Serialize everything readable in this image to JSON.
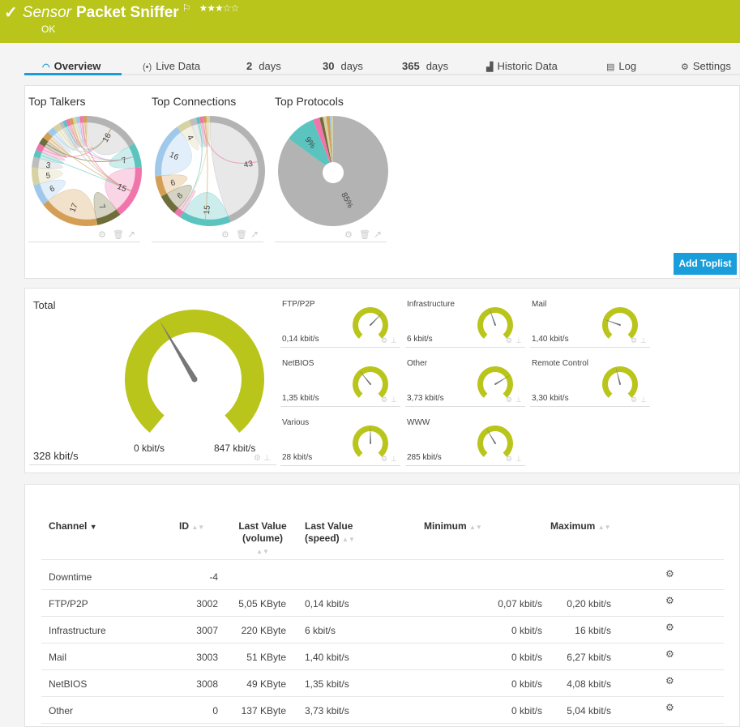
{
  "header": {
    "prefix": "Sensor",
    "title": "Packet Sniffer",
    "status": "OK",
    "rating": 3,
    "rating_max": 5,
    "stars": "★★★☆☆",
    "flag": "⚐",
    "check": "✓",
    "color": "#b9c51b"
  },
  "tabs": [
    {
      "icon": "◠",
      "label": "Overview",
      "active": true
    },
    {
      "icon": "(•)",
      "label": "Live Data"
    },
    {
      "num": "2",
      "label": "days"
    },
    {
      "num": "30",
      "label": "days"
    },
    {
      "num": "365",
      "label": "days"
    },
    {
      "icon": "▟",
      "label": "Historic Data"
    },
    {
      "icon": "▤",
      "label": "Log"
    },
    {
      "icon": "⚙",
      "label": "Settings"
    }
  ],
  "toplists": {
    "items": [
      {
        "title": "Top Talkers",
        "type": "chord",
        "segments": [
          {
            "v": 16,
            "c": "#b3b3b3",
            "label": "16"
          },
          {
            "v": 7,
            "c": "#5bc4bf",
            "label": "7"
          },
          {
            "v": 15,
            "c": "#f075ab",
            "label": "15"
          },
          {
            "v": 7,
            "c": "#6f6d3a",
            "label": "7"
          },
          {
            "v": 17,
            "c": "#d49f55",
            "label": "17"
          },
          {
            "v": 6,
            "c": "#9fc8ea",
            "label": "6"
          },
          {
            "v": 5,
            "c": "#d7d2a3",
            "label": "5"
          },
          {
            "v": 3,
            "c": "#bdbdbd",
            "label": "3"
          },
          {
            "v": 2,
            "c": "#5bc4bf"
          },
          {
            "v": 2,
            "c": "#f075ab"
          },
          {
            "v": 2,
            "c": "#6f6d3a"
          },
          {
            "v": 2,
            "c": "#d49f55"
          },
          {
            "v": 2,
            "c": "#9fc8ea"
          },
          {
            "v": 2,
            "c": "#d7d2a3"
          },
          {
            "v": 1,
            "c": "#bdbdbd"
          },
          {
            "v": 1,
            "c": "#5bc4bf"
          },
          {
            "v": 1,
            "c": "#f075ab"
          },
          {
            "v": 1,
            "c": "#d49f55"
          },
          {
            "v": 1,
            "c": "#d7d2a3"
          },
          {
            "v": 1,
            "c": "#9fc8ea"
          },
          {
            "v": 1,
            "c": "#f075ab"
          },
          {
            "v": 1,
            "c": "#d49f55"
          }
        ]
      },
      {
        "title": "Top Connections",
        "type": "chord",
        "segments": [
          {
            "v": 43,
            "c": "#b3b3b3",
            "label": "43"
          },
          {
            "v": 15,
            "c": "#5bc4bf",
            "label": "15"
          },
          {
            "v": 2,
            "c": "#f075ab"
          },
          {
            "v": 6,
            "c": "#6f6d3a",
            "label": "6"
          },
          {
            "v": 6,
            "c": "#d49f55",
            "label": "6"
          },
          {
            "v": 16,
            "c": "#9fc8ea",
            "label": "16"
          },
          {
            "v": 4,
            "c": "#d7d2a3",
            "label": "4"
          },
          {
            "v": 2,
            "c": "#bdbdbd"
          },
          {
            "v": 1,
            "c": "#5bc4bf"
          },
          {
            "v": 1,
            "c": "#f075ab"
          },
          {
            "v": 1,
            "c": "#d49f55"
          },
          {
            "v": 1,
            "c": "#d7d2a3"
          }
        ]
      },
      {
        "title": "Top Protocols",
        "type": "pie",
        "segments": [
          {
            "v": 85,
            "c": "#b3b3b3",
            "label": "85%"
          },
          {
            "v": 9,
            "c": "#5bc4bf",
            "label": "9%"
          },
          {
            "v": 2,
            "c": "#f075ab"
          },
          {
            "v": 1,
            "c": "#6f6d3a"
          },
          {
            "v": 1,
            "c": "#d7d2a3"
          },
          {
            "v": 1,
            "c": "#d49f55"
          },
          {
            "v": 0.5,
            "c": "#9fc8ea"
          },
          {
            "v": 0.5,
            "c": "#d7d2a3"
          }
        ]
      }
    ],
    "add_button": "Add Toplist"
  },
  "gauges": {
    "color": "#b9c51b",
    "total": {
      "label": "Total",
      "value": "328 kbit/s",
      "min": "0 kbit/s",
      "max": "847 kbit/s",
      "fraction": 0.39
    },
    "small": [
      {
        "label": "FTP/P2P",
        "value": "0,14 kbit/s",
        "fraction": 0.66
      },
      {
        "label": "Infrastructure",
        "value": "6 kbit/s",
        "fraction": 0.43
      },
      {
        "label": "Mail",
        "value": "1,40 kbit/s",
        "fraction": 0.25
      },
      {
        "label": "NetBIOS",
        "value": "1,35 kbit/s",
        "fraction": 0.36
      },
      {
        "label": "Other",
        "value": "3,73 kbit/s",
        "fraction": 0.71
      },
      {
        "label": "Remote Control",
        "value": "3,30 kbit/s",
        "fraction": 0.45
      },
      {
        "label": "Various",
        "value": "28 kbit/s",
        "fraction": 0.5
      },
      {
        "label": "WWW",
        "value": "285 kbit/s",
        "fraction": 0.39
      }
    ]
  },
  "table": {
    "headers": {
      "channel": "Channel",
      "id": "ID",
      "vol1": "Last Value",
      "vol2": "(volume)",
      "spd1": "Last Value",
      "spd2": "(speed)",
      "min": "Minimum",
      "max": "Maximum"
    },
    "rows": [
      {
        "channel": "Downtime",
        "id": "-4",
        "volume": "",
        "speed": "",
        "min": "",
        "max": ""
      },
      {
        "channel": "FTP/P2P",
        "id": "3002",
        "volume": "5,05 KByte",
        "speed": "0,14 kbit/s",
        "min": "0,07 kbit/s",
        "max": "0,20 kbit/s"
      },
      {
        "channel": "Infrastructure",
        "id": "3007",
        "volume": "220 KByte",
        "speed": "6 kbit/s",
        "min": "0 kbit/s",
        "max": "16 kbit/s"
      },
      {
        "channel": "Mail",
        "id": "3003",
        "volume": "51 KByte",
        "speed": "1,40 kbit/s",
        "min": "0 kbit/s",
        "max": "6,27 kbit/s"
      },
      {
        "channel": "NetBIOS",
        "id": "3008",
        "volume": "49 KByte",
        "speed": "1,35 kbit/s",
        "min": "0 kbit/s",
        "max": "4,08 kbit/s"
      },
      {
        "channel": "Other",
        "id": "0",
        "volume": "137 KByte",
        "speed": "3,73 kbit/s",
        "min": "0 kbit/s",
        "max": "5,04 kbit/s"
      }
    ]
  }
}
